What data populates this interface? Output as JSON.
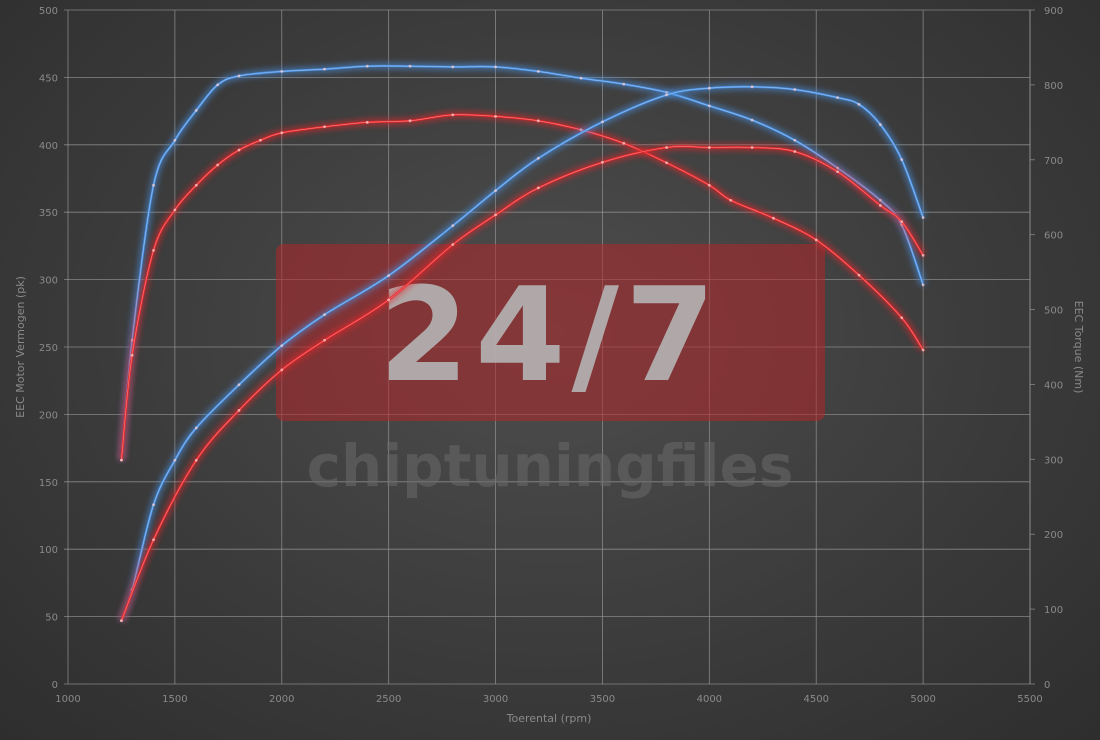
{
  "chart_data": {
    "type": "line",
    "xlabel": "Toerental (rpm)",
    "ylabel_left": "EEC Motor Vermogen (pk)",
    "ylabel_right": "EEC Torque (Nm)",
    "xlim": [
      1000,
      5500
    ],
    "ylim_left": [
      0,
      500
    ],
    "ylim_right": [
      0,
      900
    ],
    "x_ticks": [
      1000,
      1500,
      2000,
      2500,
      3000,
      3500,
      4000,
      4500,
      5000,
      5500
    ],
    "y_ticks_left": [
      0,
      50,
      100,
      150,
      200,
      250,
      300,
      350,
      400,
      450,
      500
    ],
    "y_ticks_right": [
      0,
      100,
      200,
      300,
      400,
      500,
      600,
      700,
      800,
      900
    ],
    "grid": true,
    "watermark": {
      "big": "24/7",
      "small": "chiptuningfiles"
    },
    "colors": {
      "blue": "#4a90e2",
      "red": "#e8262a"
    },
    "series": [
      {
        "axis": "right",
        "color": "blue",
        "x": [
          1250,
          1300,
          1400,
          1500,
          1600,
          1700,
          1800,
          2000,
          2200,
          2400,
          2600,
          2800,
          3000,
          3200,
          3400,
          3600,
          3800,
          4000,
          4200,
          4400,
          4600,
          4800,
          4900,
          5000
        ],
        "values": [
          299,
          459,
          666,
          726,
          766,
          800,
          812,
          818,
          821,
          825,
          825,
          824,
          824,
          818,
          809,
          801,
          790,
          772,
          753,
          726,
          689,
          646,
          613,
          533
        ]
      },
      {
        "axis": "right",
        "color": "red",
        "x": [
          1250,
          1300,
          1400,
          1500,
          1600,
          1700,
          1800,
          1900,
          2000,
          2200,
          2400,
          2600,
          2800,
          3000,
          3200,
          3400,
          3600,
          3800,
          4000,
          4100,
          4300,
          4500,
          4700,
          4900,
          5000
        ],
        "values": [
          299,
          439,
          579,
          633,
          666,
          693,
          713,
          726,
          736,
          744,
          750,
          752,
          760,
          758,
          752,
          740,
          722,
          696,
          666,
          646,
          622,
          593,
          546,
          489,
          446
        ]
      },
      {
        "axis": "left",
        "color": "blue",
        "x": [
          1250,
          1300,
          1400,
          1500,
          1600,
          1800,
          2000,
          2200,
          2500,
          2800,
          3000,
          3200,
          3500,
          3800,
          4000,
          4200,
          4400,
          4600,
          4700,
          4800,
          4900,
          5000
        ],
        "values": [
          47,
          70,
          133,
          166,
          190,
          222,
          251,
          274,
          303,
          340,
          366,
          390,
          417,
          437,
          442,
          443,
          441,
          435,
          430,
          415,
          389,
          346
        ]
      },
      {
        "axis": "left",
        "color": "red",
        "x": [
          1250,
          1400,
          1600,
          1800,
          2000,
          2200,
          2500,
          2800,
          3000,
          3200,
          3500,
          3800,
          4000,
          4200,
          4400,
          4600,
          4800,
          4900,
          5000
        ],
        "values": [
          47,
          107,
          166,
          203,
          233,
          255,
          285,
          326,
          348,
          368,
          387,
          398,
          398,
          398,
          395,
          380,
          355,
          343,
          318
        ]
      }
    ]
  }
}
